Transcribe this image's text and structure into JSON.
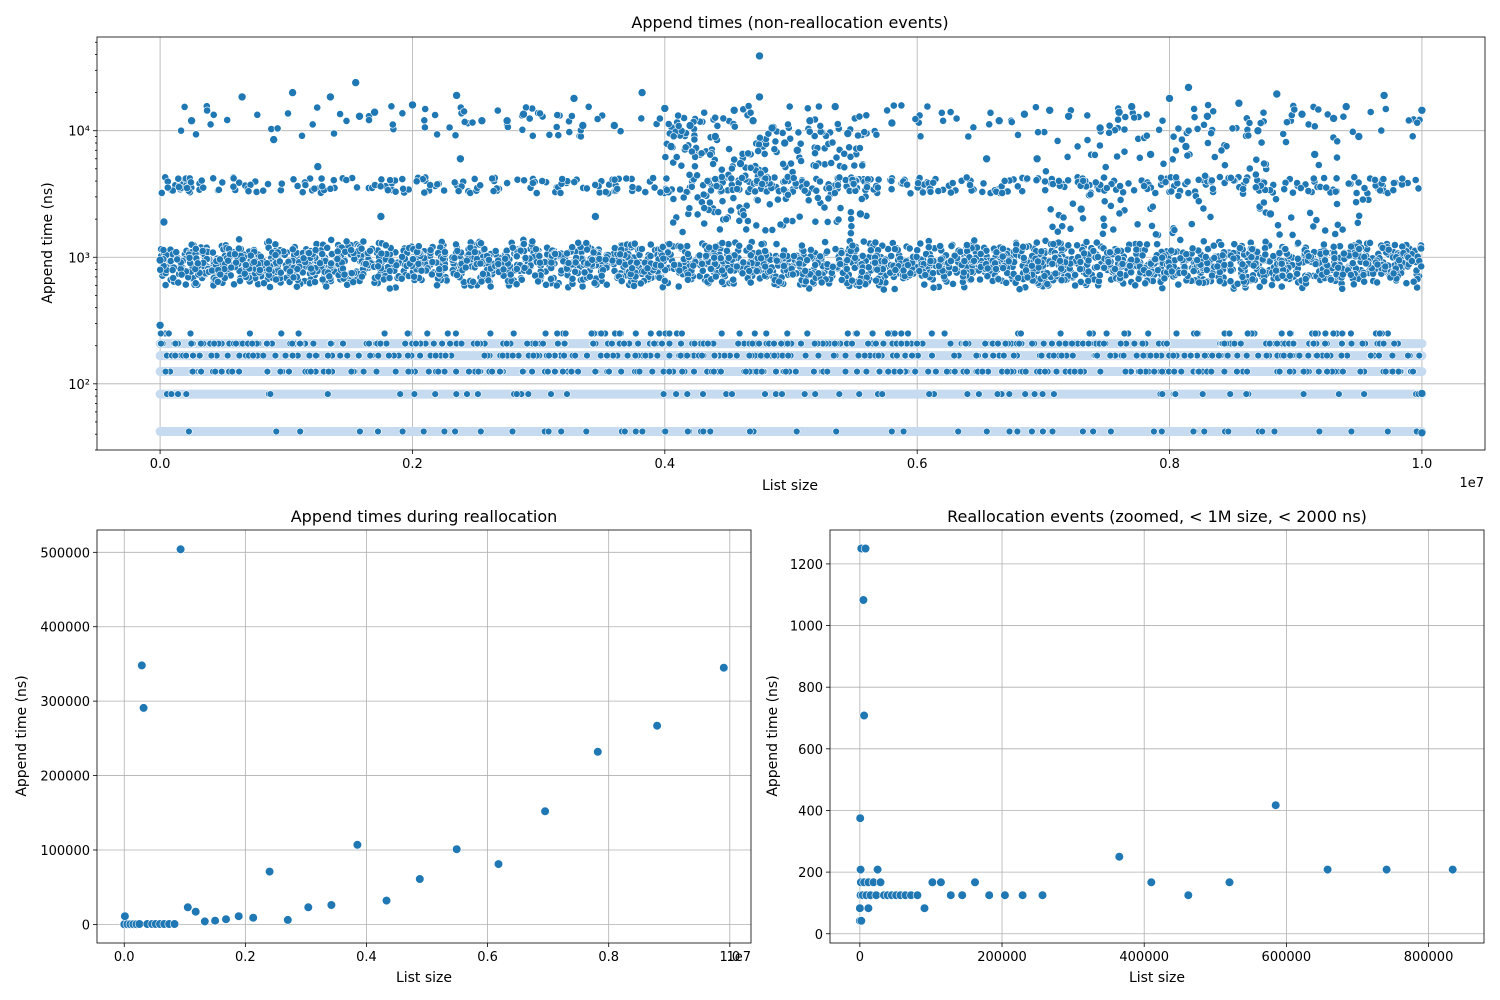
{
  "figure_description_title": "Append timing scatter plots",
  "colors": {
    "point": "#1f77b4",
    "point_stroke": "#ffffff",
    "band": "#c6dbef",
    "grid": "#b0b0b0"
  },
  "chart_data": [
    {
      "id": "top",
      "type": "scatter",
      "title": "Append times (non-reallocation events)",
      "xlabel": "List size",
      "ylabel": "Append time (ns)",
      "x_offset_label": "1e7",
      "yscale": "log",
      "xlim": [
        -500000,
        10500000
      ],
      "ylim": [
        30,
        55000
      ],
      "xticks": [
        0,
        2000000,
        4000000,
        6000000,
        8000000,
        10000000
      ],
      "xtick_labels": [
        "0.0",
        "0.2",
        "0.4",
        "0.6",
        "0.8",
        "1.0"
      ],
      "yticks": [
        100,
        1000,
        10000
      ],
      "ytick_labels": [
        "10²",
        "10³",
        "10⁴"
      ],
      "dense_levels_ns": [
        42,
        83,
        125,
        167,
        208
      ],
      "main_band_ns": [
        550,
        1400
      ],
      "outlier_points": [
        {
          "x": 30000,
          "y": 1900
        },
        {
          "x": 0,
          "y": 290
        },
        {
          "x": 0,
          "y": 950
        },
        {
          "x": 250000,
          "y": 12000
        },
        {
          "x": 650000,
          "y": 18500
        },
        {
          "x": 900000,
          "y": 8500
        },
        {
          "x": 1050000,
          "y": 20000
        },
        {
          "x": 1250000,
          "y": 5200
        },
        {
          "x": 1350000,
          "y": 18500
        },
        {
          "x": 1550000,
          "y": 24000
        },
        {
          "x": 1580000,
          "y": 13000
        },
        {
          "x": 1700000,
          "y": 14000
        },
        {
          "x": 1750000,
          "y": 2100
        },
        {
          "x": 2000000,
          "y": 16000
        },
        {
          "x": 2350000,
          "y": 19000
        },
        {
          "x": 2380000,
          "y": 6000
        },
        {
          "x": 2550000,
          "y": 12000
        },
        {
          "x": 2750000,
          "y": 12000
        },
        {
          "x": 2880000,
          "y": 13500
        },
        {
          "x": 3280000,
          "y": 18000
        },
        {
          "x": 3350000,
          "y": 11000
        },
        {
          "x": 3450000,
          "y": 2100
        },
        {
          "x": 3600000,
          "y": 11000
        },
        {
          "x": 3820000,
          "y": 20000
        },
        {
          "x": 4000000,
          "y": 15000
        },
        {
          "x": 4050000,
          "y": 7500
        },
        {
          "x": 4200000,
          "y": 11000
        },
        {
          "x": 4400000,
          "y": 9000
        },
        {
          "x": 4550000,
          "y": 14500
        },
        {
          "x": 4600000,
          "y": 5500
        },
        {
          "x": 4700000,
          "y": 12000
        },
        {
          "x": 4750000,
          "y": 39000
        },
        {
          "x": 4750000,
          "y": 18500
        },
        {
          "x": 4850000,
          "y": 10500
        },
        {
          "x": 4950000,
          "y": 8000
        },
        {
          "x": 5050000,
          "y": 7000
        },
        {
          "x": 5150000,
          "y": 12000
        },
        {
          "x": 5350000,
          "y": 15500
        },
        {
          "x": 5450000,
          "y": 9500
        },
        {
          "x": 5550000,
          "y": 2200
        },
        {
          "x": 5800000,
          "y": 11500
        },
        {
          "x": 6550000,
          "y": 6000
        },
        {
          "x": 6650000,
          "y": 12000
        },
        {
          "x": 6850000,
          "y": 13500
        },
        {
          "x": 6950000,
          "y": 6000
        },
        {
          "x": 7050000,
          "y": 14500
        },
        {
          "x": 7200000,
          "y": 13000
        },
        {
          "x": 7300000,
          "y": 2400
        },
        {
          "x": 7450000,
          "y": 10500
        },
        {
          "x": 7600000,
          "y": 14000
        },
        {
          "x": 7700000,
          "y": 15500
        },
        {
          "x": 7850000,
          "y": 6500
        },
        {
          "x": 8000000,
          "y": 18000
        },
        {
          "x": 8150000,
          "y": 22000
        },
        {
          "x": 8130000,
          "y": 7500
        },
        {
          "x": 8300000,
          "y": 13000
        },
        {
          "x": 8550000,
          "y": 16500
        },
        {
          "x": 8700000,
          "y": 10000
        },
        {
          "x": 8800000,
          "y": 2200
        },
        {
          "x": 8850000,
          "y": 19500
        },
        {
          "x": 9050000,
          "y": 13500
        },
        {
          "x": 9150000,
          "y": 6500
        },
        {
          "x": 9300000,
          "y": 12500
        },
        {
          "x": 9400000,
          "y": 15500
        },
        {
          "x": 9500000,
          "y": 9000
        },
        {
          "x": 9700000,
          "y": 19000
        },
        {
          "x": 10000000,
          "y": 14500
        },
        {
          "x": 10000000,
          "y": 41
        },
        {
          "x": 10000000,
          "y": 84
        }
      ]
    },
    {
      "id": "bottom-left",
      "type": "scatter",
      "title": "Append times during reallocation",
      "xlabel": "List size",
      "ylabel": "Append time (ns)",
      "x_offset_label": "1e7",
      "yscale": "linear",
      "xlim": [
        -450000,
        10350000
      ],
      "ylim": [
        -25000,
        530000
      ],
      "xticks": [
        0,
        2000000,
        4000000,
        6000000,
        8000000,
        10000000
      ],
      "xtick_labels": [
        "0.0",
        "0.2",
        "0.4",
        "0.6",
        "0.8",
        "1.0"
      ],
      "yticks": [
        0,
        100000,
        200000,
        300000,
        400000,
        500000
      ],
      "ytick_labels": [
        "0",
        "100000",
        "200000",
        "300000",
        "400000",
        "500000"
      ],
      "points": [
        {
          "x": 0,
          "y": 42
        },
        {
          "x": 0,
          "y": 83
        },
        {
          "x": 0,
          "y": 125
        },
        {
          "x": 10000,
          "y": 11000
        },
        {
          "x": 50000,
          "y": 300
        },
        {
          "x": 100000,
          "y": 300
        },
        {
          "x": 150000,
          "y": 300
        },
        {
          "x": 200000,
          "y": 300
        },
        {
          "x": 250000,
          "y": 500
        },
        {
          "x": 290000,
          "y": 348000
        },
        {
          "x": 320000,
          "y": 291000
        },
        {
          "x": 380000,
          "y": 500
        },
        {
          "x": 460000,
          "y": 500
        },
        {
          "x": 520000,
          "y": 500
        },
        {
          "x": 590000,
          "y": 500
        },
        {
          "x": 660000,
          "y": 500
        },
        {
          "x": 740000,
          "y": 500
        },
        {
          "x": 830000,
          "y": 500
        },
        {
          "x": 930000,
          "y": 504000
        },
        {
          "x": 1050000,
          "y": 23000
        },
        {
          "x": 1180000,
          "y": 17000
        },
        {
          "x": 1330000,
          "y": 4000
        },
        {
          "x": 1500000,
          "y": 5000
        },
        {
          "x": 1680000,
          "y": 7000
        },
        {
          "x": 1890000,
          "y": 11000
        },
        {
          "x": 2130000,
          "y": 9000
        },
        {
          "x": 2400000,
          "y": 71000
        },
        {
          "x": 2700000,
          "y": 6000
        },
        {
          "x": 3040000,
          "y": 23000
        },
        {
          "x": 3420000,
          "y": 26000
        },
        {
          "x": 3850000,
          "y": 107000
        },
        {
          "x": 4330000,
          "y": 32000
        },
        {
          "x": 4880000,
          "y": 61000
        },
        {
          "x": 5490000,
          "y": 101000
        },
        {
          "x": 6180000,
          "y": 81000
        },
        {
          "x": 6950000,
          "y": 152000
        },
        {
          "x": 7820000,
          "y": 232000
        },
        {
          "x": 8800000,
          "y": 267000
        },
        {
          "x": 9900000,
          "y": 345000
        }
      ]
    },
    {
      "id": "bottom-right",
      "type": "scatter",
      "title": "Reallocation events (zoomed, < 1M size, < 2000 ns)",
      "xlabel": "List size",
      "ylabel": "Append time (ns)",
      "yscale": "linear",
      "xlim": [
        -42000,
        878000
      ],
      "ylim": [
        -30,
        1310
      ],
      "xticks": [
        0,
        200000,
        400000,
        600000,
        800000
      ],
      "xtick_labels": [
        "0",
        "200000",
        "400000",
        "600000",
        "800000"
      ],
      "yticks": [
        0,
        200,
        400,
        600,
        800,
        1000,
        1200
      ],
      "ytick_labels": [
        "0",
        "200",
        "400",
        "600",
        "800",
        "1000",
        "1200"
      ],
      "points": [
        {
          "x": 0,
          "y": 42
        },
        {
          "x": 2000,
          "y": 42
        },
        {
          "x": 0,
          "y": 83
        },
        {
          "x": 1000,
          "y": 125
        },
        {
          "x": 500,
          "y": 375
        },
        {
          "x": 1000,
          "y": 208
        },
        {
          "x": 1500,
          "y": 167
        },
        {
          "x": 2000,
          "y": 1250
        },
        {
          "x": 5000,
          "y": 1083
        },
        {
          "x": 6000,
          "y": 708
        },
        {
          "x": 8000,
          "y": 1250
        },
        {
          "x": 4000,
          "y": 125
        },
        {
          "x": 6000,
          "y": 167
        },
        {
          "x": 9000,
          "y": 125
        },
        {
          "x": 12000,
          "y": 83
        },
        {
          "x": 12000,
          "y": 167
        },
        {
          "x": 15000,
          "y": 125
        },
        {
          "x": 19000,
          "y": 167
        },
        {
          "x": 23000,
          "y": 125
        },
        {
          "x": 25000,
          "y": 208
        },
        {
          "x": 29000,
          "y": 167
        },
        {
          "x": 34000,
          "y": 125
        },
        {
          "x": 39000,
          "y": 125
        },
        {
          "x": 45000,
          "y": 125
        },
        {
          "x": 51000,
          "y": 125
        },
        {
          "x": 57000,
          "y": 125
        },
        {
          "x": 64000,
          "y": 125
        },
        {
          "x": 72000,
          "y": 125
        },
        {
          "x": 81000,
          "y": 125
        },
        {
          "x": 91000,
          "y": 83
        },
        {
          "x": 102000,
          "y": 167
        },
        {
          "x": 114000,
          "y": 167
        },
        {
          "x": 128000,
          "y": 125
        },
        {
          "x": 144000,
          "y": 125
        },
        {
          "x": 162000,
          "y": 167
        },
        {
          "x": 182000,
          "y": 125
        },
        {
          "x": 204000,
          "y": 125
        },
        {
          "x": 229000,
          "y": 125
        },
        {
          "x": 257000,
          "y": 125
        },
        {
          "x": 365000,
          "y": 250
        },
        {
          "x": 410000,
          "y": 167
        },
        {
          "x": 462000,
          "y": 125
        },
        {
          "x": 520000,
          "y": 167
        },
        {
          "x": 585000,
          "y": 417
        },
        {
          "x": 658000,
          "y": 208
        },
        {
          "x": 741000,
          "y": 208
        },
        {
          "x": 834000,
          "y": 208
        }
      ]
    }
  ]
}
